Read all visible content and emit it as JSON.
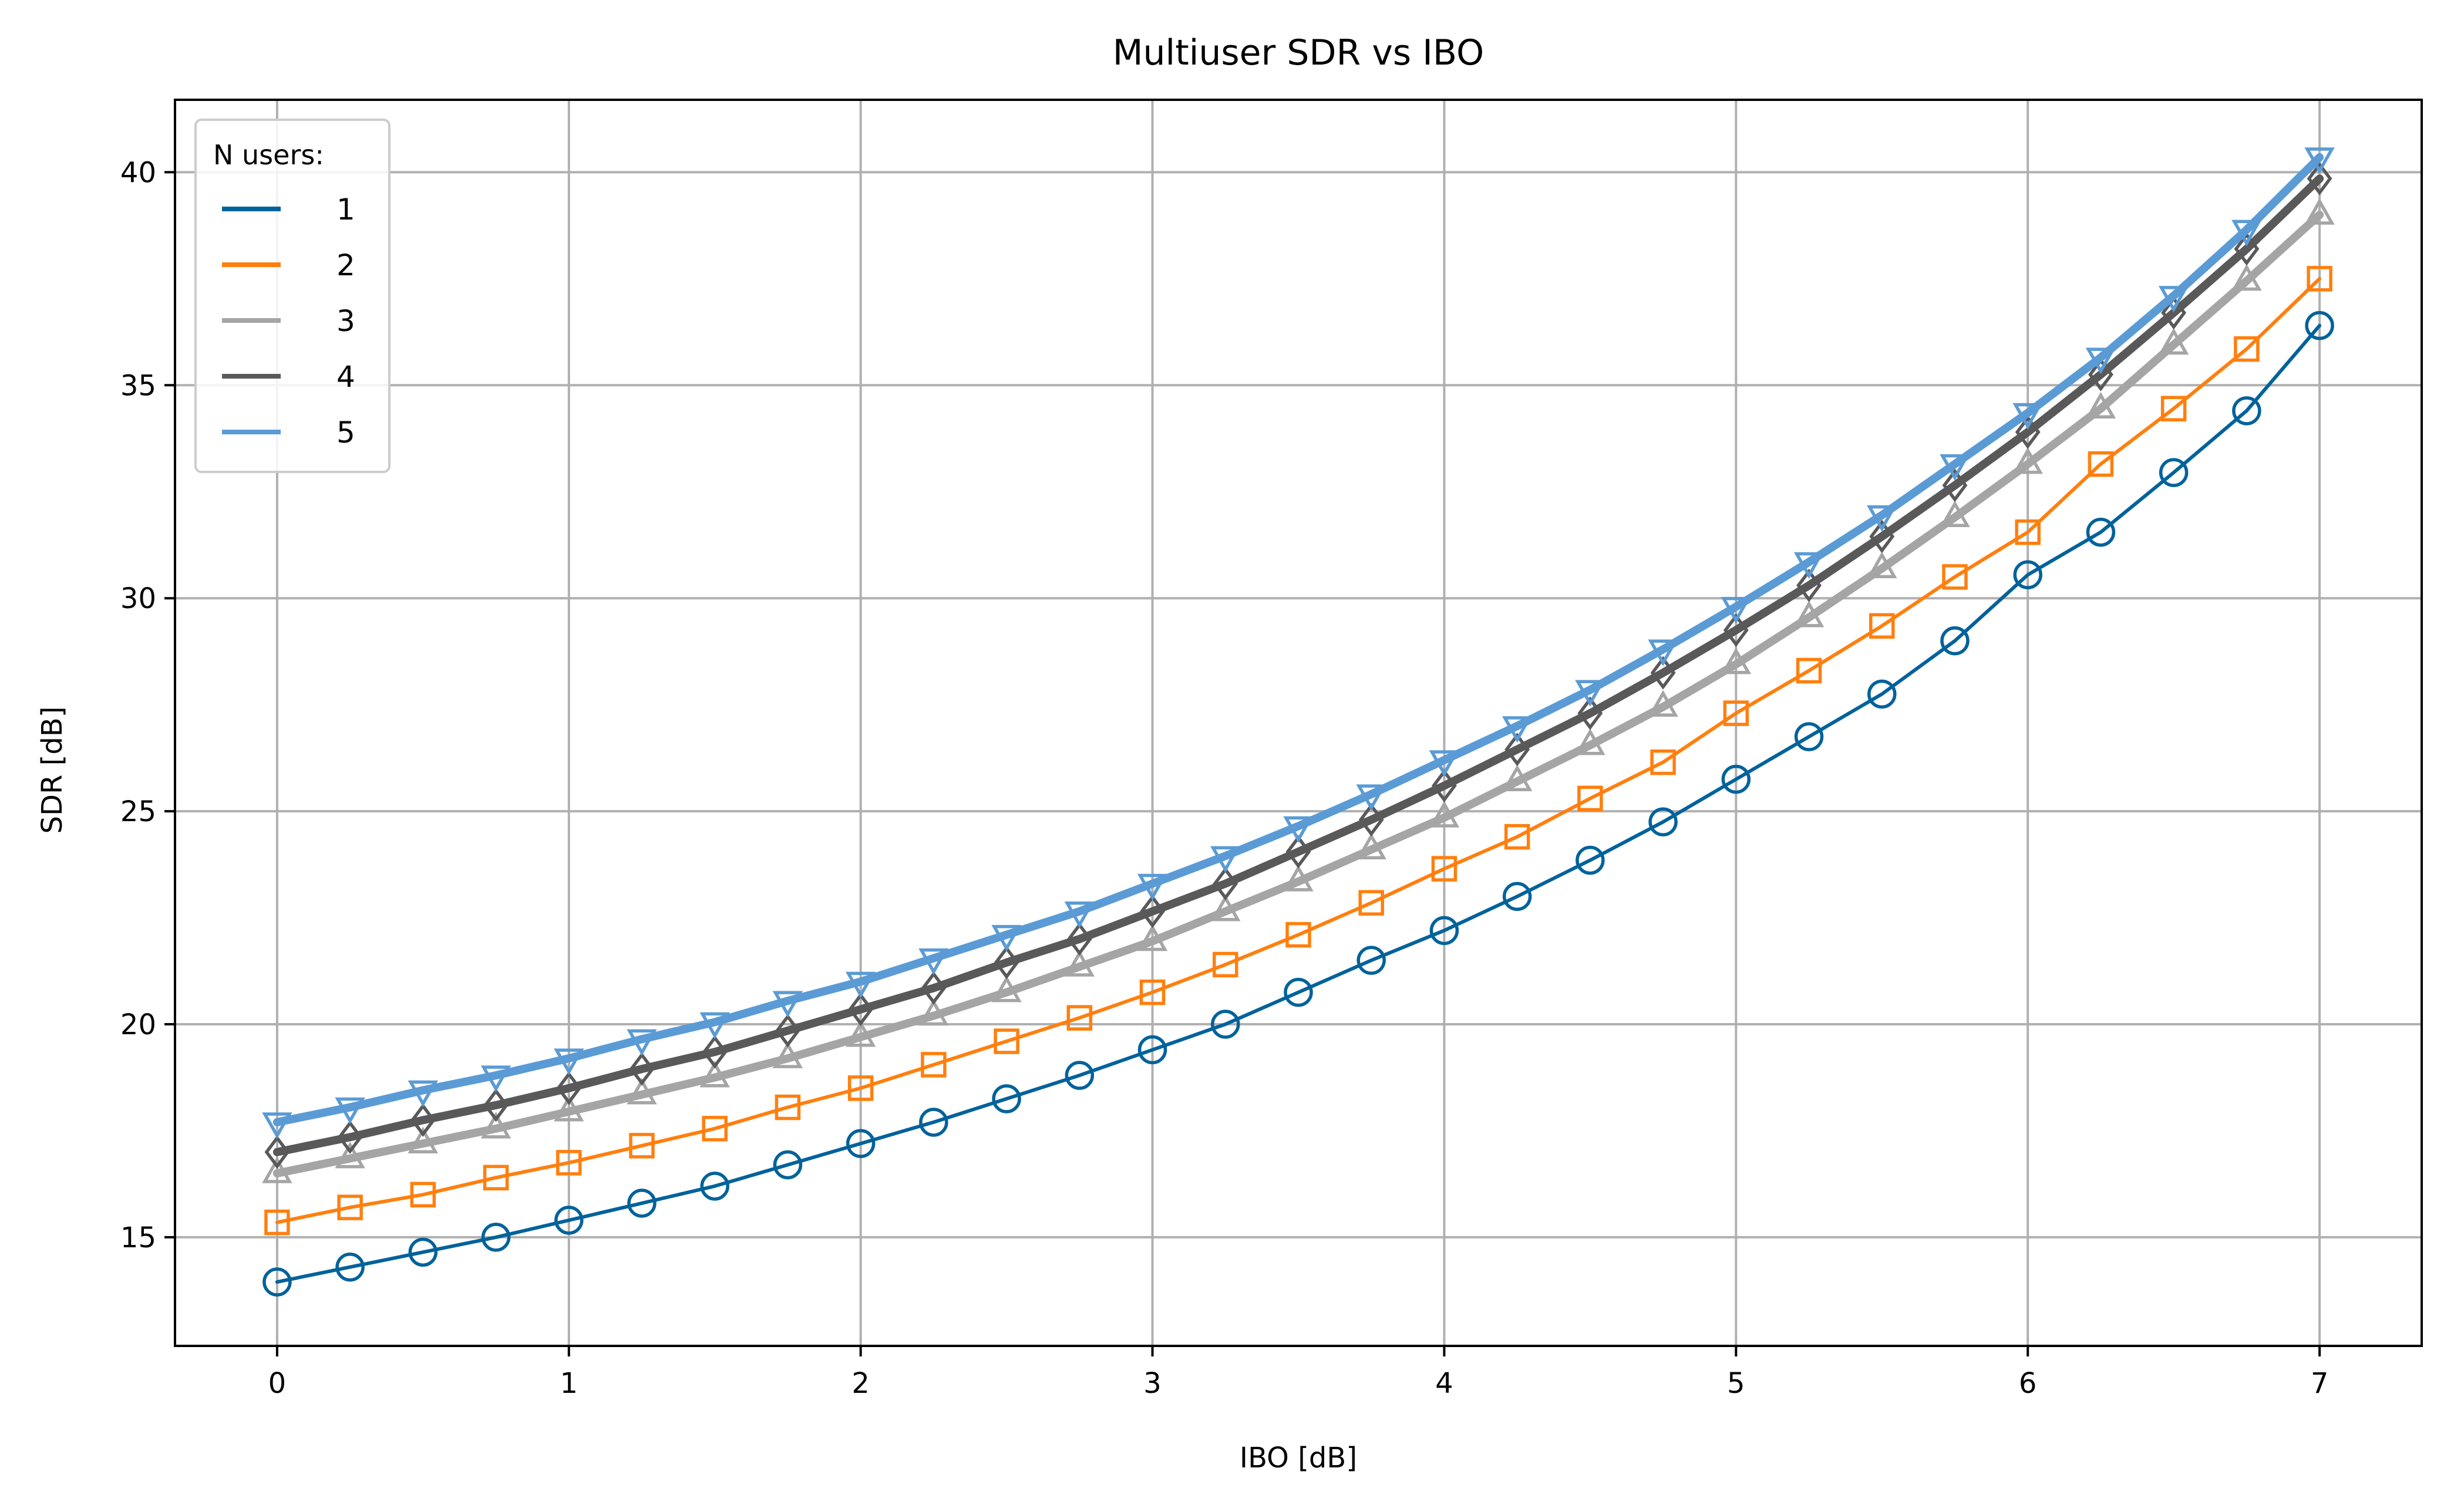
{
  "chart_data": {
    "type": "line",
    "title": "Multiuser SDR vs IBO",
    "xlabel": "IBO [dB]",
    "ylabel": "SDR [dB]",
    "xlim": [
      -0.35,
      7.35
    ],
    "ylim": [
      12.45,
      41.7
    ],
    "xticks": [
      0,
      1,
      2,
      3,
      4,
      5,
      6,
      7
    ],
    "yticks": [
      15,
      20,
      25,
      30,
      35,
      40
    ],
    "grid": true,
    "legend": {
      "title": "N users:",
      "position": "top-left"
    },
    "x": [
      0,
      0.25,
      0.5,
      0.75,
      1,
      1.25,
      1.5,
      1.75,
      2,
      2.25,
      2.5,
      2.75,
      3,
      3.25,
      3.5,
      3.75,
      4,
      4.25,
      4.5,
      4.75,
      5,
      5.25,
      5.5,
      5.75,
      6,
      6.25,
      6.5,
      6.75,
      7
    ],
    "series": [
      {
        "name": "1",
        "color": "#00629b",
        "marker": "circle",
        "values": [
          13.95,
          14.3,
          14.65,
          15.0,
          15.4,
          15.8,
          16.2,
          16.7,
          17.2,
          17.7,
          18.25,
          18.8,
          19.4,
          20.0,
          20.75,
          21.5,
          22.2,
          23.0,
          23.85,
          24.75,
          25.75,
          26.75,
          27.75,
          29.0,
          30.55,
          31.55,
          32.95,
          34.4,
          36.4
        ]
      },
      {
        "name": "2",
        "color": "#ff7f0e",
        "marker": "square",
        "values": [
          15.35,
          15.7,
          16.0,
          16.4,
          16.75,
          17.15,
          17.55,
          18.05,
          18.5,
          19.05,
          19.6,
          20.15,
          20.75,
          21.4,
          22.1,
          22.85,
          23.65,
          24.4,
          25.3,
          26.15,
          27.3,
          28.3,
          29.35,
          30.5,
          31.55,
          33.15,
          34.45,
          35.85,
          37.5
        ]
      },
      {
        "name": "3",
        "color": "#a5a5a5",
        "marker": "triangle",
        "values": [
          16.5,
          16.85,
          17.2,
          17.55,
          17.95,
          18.35,
          18.75,
          19.2,
          19.7,
          20.2,
          20.75,
          21.35,
          21.95,
          22.65,
          23.35,
          24.1,
          24.85,
          25.7,
          26.55,
          27.45,
          28.45,
          29.55,
          30.7,
          31.9,
          33.15,
          34.45,
          35.95,
          37.45,
          39.0
        ]
      },
      {
        "name": "4",
        "color": "#595959",
        "marker": "diamond",
        "values": [
          17.0,
          17.35,
          17.75,
          18.1,
          18.5,
          18.95,
          19.35,
          19.85,
          20.35,
          20.85,
          21.45,
          22.0,
          22.65,
          23.3,
          24.05,
          24.8,
          25.6,
          26.45,
          27.3,
          28.25,
          29.25,
          30.3,
          31.45,
          32.65,
          33.9,
          35.25,
          36.7,
          38.2,
          39.85
        ]
      },
      {
        "name": "5",
        "color": "#5b9bd5",
        "marker": "triangle-down",
        "values": [
          17.7,
          18.05,
          18.45,
          18.8,
          19.2,
          19.65,
          20.05,
          20.55,
          21.0,
          21.55,
          22.1,
          22.65,
          23.3,
          23.95,
          24.65,
          25.4,
          26.2,
          27.0,
          27.85,
          28.8,
          29.8,
          30.85,
          31.95,
          33.15,
          34.35,
          35.65,
          37.1,
          38.65,
          40.35
        ]
      }
    ]
  }
}
